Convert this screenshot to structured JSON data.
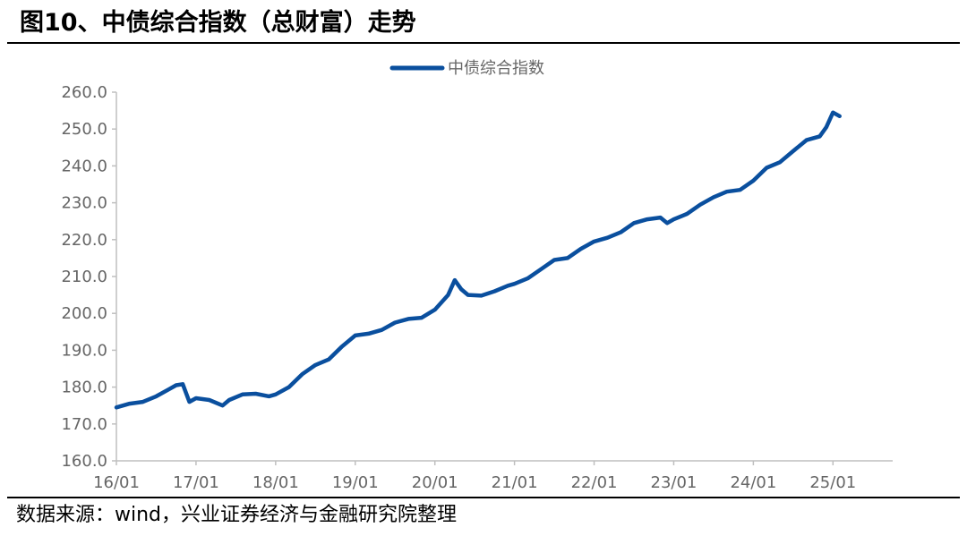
{
  "header": {
    "title": "图10、中债综合指数（总财富）走势"
  },
  "footer": {
    "source": "数据来源：wind，兴业证券经济与金融研究院整理"
  },
  "colors": {
    "series": "#0a4f9e",
    "axis": "#bfbfbf",
    "text": "#666666"
  },
  "chart_data": {
    "type": "line",
    "title": "",
    "xlabel": "",
    "ylabel": "",
    "ylim": [
      160,
      260
    ],
    "y_ticks": [
      "160.0",
      "170.0",
      "180.0",
      "190.0",
      "200.0",
      "210.0",
      "220.0",
      "230.0",
      "240.0",
      "250.0",
      "260.0"
    ],
    "x_ticks": [
      "16/01",
      "17/01",
      "18/01",
      "19/01",
      "20/01",
      "21/01",
      "22/01",
      "23/01",
      "24/01",
      "25/01"
    ],
    "legend": {
      "position": "top-center",
      "entries": [
        "中债综合指数"
      ]
    },
    "grid": false,
    "series": [
      {
        "name": "中债综合指数",
        "x": [
          "2016-01",
          "2016-03",
          "2016-05",
          "2016-07",
          "2016-09",
          "2016-10",
          "2016-11",
          "2016-12",
          "2017-01",
          "2017-03",
          "2017-05",
          "2017-06",
          "2017-08",
          "2017-10",
          "2017-12",
          "2018-01",
          "2018-03",
          "2018-05",
          "2018-07",
          "2018-09",
          "2018-11",
          "2019-01",
          "2019-03",
          "2019-05",
          "2019-07",
          "2019-09",
          "2019-11",
          "2020-01",
          "2020-03",
          "2020-04",
          "2020-05",
          "2020-06",
          "2020-08",
          "2020-10",
          "2020-12",
          "2021-01",
          "2021-03",
          "2021-05",
          "2021-07",
          "2021-09",
          "2021-11",
          "2022-01",
          "2022-03",
          "2022-05",
          "2022-07",
          "2022-09",
          "2022-11",
          "2022-12",
          "2023-01",
          "2023-03",
          "2023-05",
          "2023-07",
          "2023-09",
          "2023-11",
          "2024-01",
          "2024-03",
          "2024-05",
          "2024-07",
          "2024-09",
          "2024-11",
          "2024-12",
          "2025-01",
          "2025-02"
        ],
        "values": [
          174.5,
          175.5,
          176.0,
          177.5,
          179.5,
          180.5,
          180.8,
          176.0,
          177.0,
          176.5,
          175.0,
          176.5,
          178.0,
          178.2,
          177.5,
          178.0,
          180.0,
          183.5,
          186.0,
          187.5,
          191.0,
          194.0,
          194.5,
          195.5,
          197.5,
          198.5,
          198.8,
          201.0,
          205.0,
          209.0,
          206.5,
          205.0,
          204.8,
          206.0,
          207.5,
          208.0,
          209.5,
          212.0,
          214.5,
          215.0,
          217.5,
          219.5,
          220.5,
          222.0,
          224.5,
          225.5,
          226.0,
          224.5,
          225.5,
          227.0,
          229.5,
          231.5,
          233.0,
          233.5,
          236.0,
          239.5,
          241.0,
          244.0,
          247.0,
          248.0,
          250.5,
          254.5,
          253.5
        ]
      }
    ]
  }
}
